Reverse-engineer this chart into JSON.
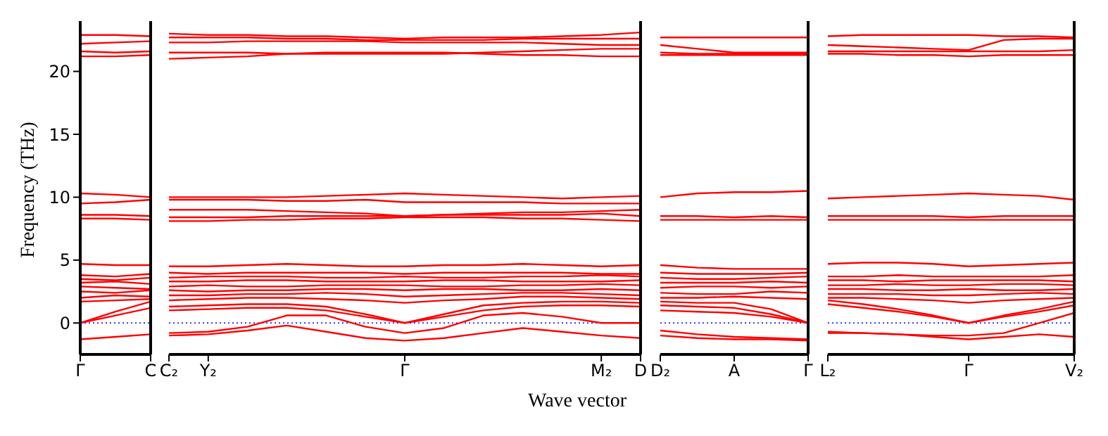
{
  "chart_data": [
    {
      "type": "line",
      "ylabel": "Frequency (THz)",
      "categories": [
        "Γ",
        null,
        "C"
      ],
      "ylim": [
        -2.5,
        24
      ],
      "yticks": [
        0,
        5,
        10,
        15,
        20
      ],
      "ref_lines": [
        {
          "axis": "y",
          "value": 0,
          "color": "#0000ff",
          "line_style": "dotted"
        }
      ],
      "series": [
        {
          "color": "#ff0000",
          "values": [
            -1.3,
            -1.1,
            -0.9
          ]
        },
        {
          "color": "#ff0000",
          "values": [
            0,
            0.6,
            1.2
          ]
        },
        {
          "color": "#ff0000",
          "values": [
            0,
            0.9,
            1.7
          ]
        },
        {
          "color": "#ff0000",
          "values": [
            1.7,
            1.8,
            1.9
          ]
        },
        {
          "color": "#ff0000",
          "values": [
            2.0,
            2.2,
            2.1
          ]
        },
        {
          "color": "#ff0000",
          "values": [
            2.5,
            2.4,
            2.6
          ]
        },
        {
          "color": "#ff0000",
          "values": [
            2.9,
            2.8,
            2.7
          ]
        },
        {
          "color": "#ff0000",
          "values": [
            3.2,
            3.3,
            3.1
          ]
        },
        {
          "color": "#ff0000",
          "values": [
            3.5,
            3.4,
            3.6
          ]
        },
        {
          "color": "#ff0000",
          "values": [
            3.8,
            3.7,
            3.9
          ]
        },
        {
          "color": "#ff0000",
          "values": [
            4.7,
            4.6,
            4.6
          ]
        },
        {
          "color": "#ff0000",
          "values": [
            8.3,
            8.3,
            8.2
          ]
        },
        {
          "color": "#ff0000",
          "values": [
            8.6,
            8.6,
            8.5
          ]
        },
        {
          "color": "#ff0000",
          "values": [
            9.5,
            9.6,
            9.8
          ]
        },
        {
          "color": "#ff0000",
          "values": [
            10.3,
            10.2,
            10.0
          ]
        },
        {
          "color": "#ff0000",
          "values": [
            21.2,
            21.2,
            21.3
          ]
        },
        {
          "color": "#ff0000",
          "values": [
            21.6,
            21.5,
            21.6
          ]
        },
        {
          "color": "#ff0000",
          "values": [
            22.2,
            22.3,
            22.4
          ]
        },
        {
          "color": "#ff0000",
          "values": [
            22.9,
            22.9,
            22.8
          ]
        }
      ]
    },
    {
      "type": "line",
      "xlabel": "Wave vector",
      "tick_labels": "x",
      "categories": [
        "C₂",
        "Y₂",
        null,
        null,
        null,
        null,
        "Γ",
        null,
        null,
        null,
        null,
        "M₂",
        "D"
      ],
      "ylim": [
        -2.5,
        24
      ],
      "yticks": [
        0,
        5,
        10,
        15,
        20
      ],
      "ref_lines": [
        {
          "axis": "y",
          "value": 0,
          "color": "#0000ff",
          "line_style": "dotted"
        }
      ],
      "series": [
        {
          "color": "#ff0000",
          "values": [
            -1.0,
            -0.9,
            -0.6,
            -0.2,
            -0.7,
            -1.2,
            -1.4,
            -1.2,
            -0.8,
            -0.4,
            -0.7,
            -1.0,
            -1.2
          ]
        },
        {
          "color": "#ff0000",
          "values": [
            -0.8,
            -0.7,
            -0.3,
            0.6,
            0.6,
            -0.3,
            -0.8,
            -0.4,
            0.6,
            0.8,
            0.5,
            0.0,
            0.0
          ]
        },
        {
          "color": "#ff0000",
          "values": [
            1.0,
            1.1,
            1.2,
            1.2,
            1.0,
            0.5,
            0,
            0.5,
            1.0,
            1.3,
            1.4,
            1.4,
            1.3
          ]
        },
        {
          "color": "#ff0000",
          "values": [
            1.3,
            1.4,
            1.5,
            1.5,
            1.3,
            0.7,
            0,
            0.7,
            1.4,
            1.6,
            1.7,
            1.7,
            1.6
          ]
        },
        {
          "color": "#ff0000",
          "values": [
            1.8,
            1.9,
            2.0,
            2.0,
            1.9,
            1.8,
            1.6,
            1.8,
            1.9,
            2.1,
            2.1,
            2.0,
            1.9
          ]
        },
        {
          "color": "#ff0000",
          "values": [
            2.2,
            2.2,
            2.3,
            2.3,
            2.4,
            2.3,
            2.1,
            2.2,
            2.3,
            2.4,
            2.4,
            2.3,
            2.2
          ]
        },
        {
          "color": "#ff0000",
          "values": [
            2.6,
            2.5,
            2.6,
            2.6,
            2.7,
            2.7,
            2.6,
            2.7,
            2.7,
            2.6,
            2.6,
            2.7,
            2.6
          ]
        },
        {
          "color": "#ff0000",
          "values": [
            2.9,
            3.0,
            2.9,
            2.9,
            3.0,
            3.0,
            3.0,
            2.9,
            2.9,
            3.0,
            3.0,
            3.1,
            3.0
          ]
        },
        {
          "color": "#ff0000",
          "values": [
            3.3,
            3.3,
            3.4,
            3.4,
            3.3,
            3.3,
            3.3,
            3.4,
            3.4,
            3.3,
            3.3,
            3.3,
            3.4
          ]
        },
        {
          "color": "#ff0000",
          "values": [
            3.6,
            3.7,
            3.7,
            3.7,
            3.6,
            3.6,
            3.7,
            3.6,
            3.6,
            3.7,
            3.7,
            3.8,
            3.7
          ]
        },
        {
          "color": "#ff0000",
          "values": [
            4.0,
            3.9,
            4.0,
            4.0,
            4.0,
            4.0,
            3.9,
            4.0,
            4.0,
            4.0,
            4.0,
            3.9,
            3.9
          ]
        },
        {
          "color": "#ff0000",
          "values": [
            4.5,
            4.5,
            4.6,
            4.7,
            4.6,
            4.5,
            4.5,
            4.6,
            4.6,
            4.7,
            4.6,
            4.5,
            4.6
          ]
        },
        {
          "color": "#ff0000",
          "values": [
            8.1,
            8.1,
            8.2,
            8.2,
            8.3,
            8.3,
            8.4,
            8.4,
            8.4,
            8.3,
            8.3,
            8.2,
            8.1
          ]
        },
        {
          "color": "#ff0000",
          "values": [
            8.4,
            8.4,
            8.4,
            8.5,
            8.5,
            8.5,
            8.5,
            8.6,
            8.6,
            8.6,
            8.6,
            8.7,
            8.5
          ]
        },
        {
          "color": "#ff0000",
          "values": [
            9.0,
            9.0,
            9.0,
            8.9,
            8.8,
            8.7,
            8.5,
            8.6,
            8.7,
            8.8,
            8.8,
            8.9,
            9.0
          ]
        },
        {
          "color": "#ff0000",
          "values": [
            9.8,
            9.8,
            9.8,
            9.7,
            9.7,
            9.8,
            9.6,
            9.6,
            9.6,
            9.6,
            9.5,
            9.5,
            9.5
          ]
        },
        {
          "color": "#ff0000",
          "values": [
            10.0,
            10.0,
            10.0,
            10.0,
            10.1,
            10.2,
            10.3,
            10.2,
            10.1,
            10.0,
            9.9,
            10.0,
            10.1
          ]
        },
        {
          "color": "#ff0000",
          "values": [
            21.0,
            21.1,
            21.2,
            21.4,
            21.5,
            21.5,
            21.5,
            21.5,
            21.4,
            21.3,
            21.3,
            21.2,
            21.2
          ]
        },
        {
          "color": "#ff0000",
          "values": [
            21.5,
            21.5,
            21.5,
            21.4,
            21.4,
            21.4,
            21.4,
            21.4,
            21.5,
            21.6,
            21.7,
            21.8,
            21.8
          ]
        },
        {
          "color": "#ff0000",
          "values": [
            22.3,
            22.3,
            22.4,
            22.4,
            22.4,
            22.4,
            22.3,
            22.3,
            22.3,
            22.3,
            22.2,
            22.1,
            22.1
          ]
        },
        {
          "color": "#ff0000",
          "values": [
            22.7,
            22.7,
            22.7,
            22.6,
            22.6,
            22.5,
            22.5,
            22.5,
            22.5,
            22.6,
            22.6,
            22.6,
            22.6
          ]
        },
        {
          "color": "#ff0000",
          "values": [
            23.0,
            22.9,
            22.9,
            22.8,
            22.8,
            22.7,
            22.6,
            22.7,
            22.7,
            22.7,
            22.8,
            22.9,
            23.1
          ]
        }
      ]
    },
    {
      "type": "line",
      "tick_labels": "x",
      "categories": [
        "D₂",
        null,
        "A",
        null,
        "Γ"
      ],
      "ylim": [
        -2.5,
        24
      ],
      "yticks": [
        0,
        5,
        10,
        15,
        20
      ],
      "ref_lines": [
        {
          "axis": "y",
          "value": 0,
          "color": "#0000ff",
          "line_style": "dotted"
        }
      ],
      "series": [
        {
          "color": "#ff0000",
          "values": [
            -1.0,
            -1.2,
            -1.3,
            -1.3,
            -1.4
          ]
        },
        {
          "color": "#ff0000",
          "values": [
            -0.6,
            -0.9,
            -1.1,
            -1.2,
            -1.3
          ]
        },
        {
          "color": "#ff0000",
          "values": [
            1.0,
            0.9,
            0.8,
            0.5,
            0
          ]
        },
        {
          "color": "#ff0000",
          "values": [
            1.4,
            1.3,
            1.2,
            0.7,
            0
          ]
        },
        {
          "color": "#ff0000",
          "values": [
            1.7,
            1.6,
            1.6,
            1.1,
            0
          ]
        },
        {
          "color": "#ff0000",
          "values": [
            2.0,
            2.0,
            2.1,
            2.0,
            1.9
          ]
        },
        {
          "color": "#ff0000",
          "values": [
            2.4,
            2.3,
            2.3,
            2.5,
            2.4
          ]
        },
        {
          "color": "#ff0000",
          "values": [
            2.8,
            2.9,
            2.9,
            2.8,
            2.9
          ]
        },
        {
          "color": "#ff0000",
          "values": [
            3.2,
            3.2,
            3.2,
            3.3,
            3.2
          ]
        },
        {
          "color": "#ff0000",
          "values": [
            3.6,
            3.5,
            3.5,
            3.6,
            3.7
          ]
        },
        {
          "color": "#ff0000",
          "values": [
            4.0,
            3.9,
            3.9,
            3.9,
            4.0
          ]
        },
        {
          "color": "#ff0000",
          "values": [
            4.6,
            4.4,
            4.3,
            4.3,
            4.3
          ]
        },
        {
          "color": "#ff0000",
          "values": [
            8.2,
            8.2,
            8.2,
            8.2,
            8.2
          ]
        },
        {
          "color": "#ff0000",
          "values": [
            8.5,
            8.5,
            8.4,
            8.5,
            8.4
          ]
        },
        {
          "color": "#ff0000",
          "values": [
            10.0,
            10.3,
            10.4,
            10.4,
            10.5
          ]
        },
        {
          "color": "#ff0000",
          "values": [
            21.3,
            21.3,
            21.3,
            21.3,
            21.3
          ]
        },
        {
          "color": "#ff0000",
          "values": [
            21.5,
            21.4,
            21.4,
            21.4,
            21.4
          ]
        },
        {
          "color": "#ff0000",
          "values": [
            22.1,
            21.8,
            21.5,
            21.5,
            21.5
          ]
        },
        {
          "color": "#ff0000",
          "values": [
            22.7,
            22.7,
            22.7,
            22.7,
            22.7
          ]
        }
      ]
    },
    {
      "type": "line",
      "tick_labels": "x",
      "categories": [
        "L₂",
        null,
        null,
        null,
        "Γ",
        null,
        null,
        "V₂"
      ],
      "ylim": [
        -2.5,
        24
      ],
      "yticks": [
        0,
        5,
        10,
        15,
        20
      ],
      "ref_lines": [
        {
          "axis": "y",
          "value": 0,
          "color": "#0000ff",
          "line_style": "dotted"
        }
      ],
      "series": [
        {
          "color": "#ff0000",
          "values": [
            -0.7,
            -0.8,
            -0.9,
            -1.1,
            -1.3,
            -1.1,
            -0.9,
            -1.1
          ]
        },
        {
          "color": "#ff0000",
          "values": [
            -0.8,
            -0.8,
            -0.9,
            -1.0,
            -1.0,
            -0.8,
            0.0,
            0.8
          ]
        },
        {
          "color": "#ff0000",
          "values": [
            1.5,
            1.2,
            0.9,
            0.5,
            0,
            0.5,
            0.9,
            1.4
          ]
        },
        {
          "color": "#ff0000",
          "values": [
            1.8,
            1.5,
            1.1,
            0.6,
            0,
            0.6,
            1.1,
            1.7
          ]
        },
        {
          "color": "#ff0000",
          "values": [
            2.0,
            2.0,
            1.9,
            1.8,
            1.6,
            1.8,
            1.9,
            2.0
          ]
        },
        {
          "color": "#ff0000",
          "values": [
            2.3,
            2.3,
            2.3,
            2.2,
            2.2,
            2.3,
            2.4,
            2.3
          ]
        },
        {
          "color": "#ff0000",
          "values": [
            2.7,
            2.7,
            2.6,
            2.6,
            2.7,
            2.6,
            2.6,
            2.7
          ]
        },
        {
          "color": "#ff0000",
          "values": [
            3.0,
            3.0,
            3.1,
            3.0,
            3.0,
            3.1,
            3.1,
            3.0
          ]
        },
        {
          "color": "#ff0000",
          "values": [
            3.4,
            3.4,
            3.3,
            3.4,
            3.4,
            3.4,
            3.4,
            3.3
          ]
        },
        {
          "color": "#ff0000",
          "values": [
            3.7,
            3.7,
            3.8,
            3.7,
            3.7,
            3.7,
            3.7,
            3.8
          ]
        },
        {
          "color": "#ff0000",
          "values": [
            4.7,
            4.8,
            4.8,
            4.7,
            4.5,
            4.6,
            4.7,
            4.8
          ]
        },
        {
          "color": "#ff0000",
          "values": [
            8.2,
            8.2,
            8.2,
            8.2,
            8.2,
            8.2,
            8.2,
            8.2
          ]
        },
        {
          "color": "#ff0000",
          "values": [
            8.5,
            8.5,
            8.5,
            8.5,
            8.4,
            8.5,
            8.5,
            8.5
          ]
        },
        {
          "color": "#ff0000",
          "values": [
            9.9,
            10.0,
            10.1,
            10.2,
            10.3,
            10.2,
            10.1,
            9.8
          ]
        },
        {
          "color": "#ff0000",
          "values": [
            21.4,
            21.4,
            21.3,
            21.3,
            21.2,
            21.3,
            21.3,
            21.3
          ]
        },
        {
          "color": "#ff0000",
          "values": [
            21.6,
            21.6,
            21.6,
            21.6,
            21.6,
            21.6,
            21.6,
            21.7
          ]
        },
        {
          "color": "#ff0000",
          "values": [
            22.1,
            22.0,
            21.9,
            21.8,
            21.7,
            22.5,
            22.6,
            22.6
          ]
        },
        {
          "color": "#ff0000",
          "values": [
            22.8,
            22.9,
            22.9,
            22.9,
            22.9,
            22.8,
            22.8,
            22.7
          ]
        }
      ]
    }
  ]
}
